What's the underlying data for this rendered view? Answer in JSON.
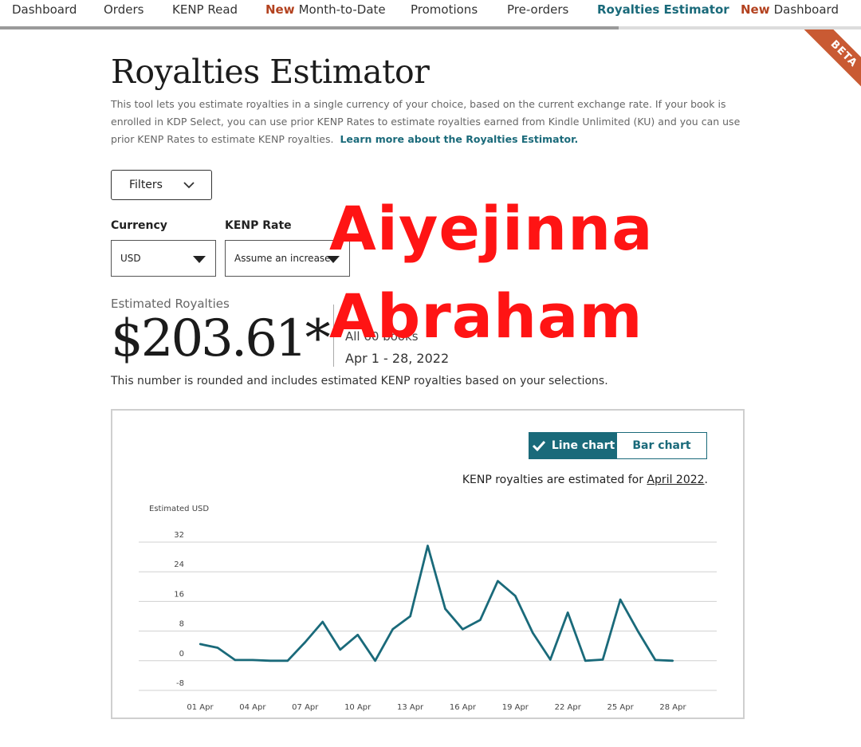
{
  "nav": {
    "items": [
      {
        "label": "Dashboard",
        "new": ""
      },
      {
        "label": "Orders",
        "new": ""
      },
      {
        "label": "KENP Read",
        "new": ""
      },
      {
        "label": "Month-to-Date",
        "new": "New"
      },
      {
        "label": "Promotions",
        "new": ""
      },
      {
        "label": "Pre-orders",
        "new": ""
      },
      {
        "label": "Royalties Estimator",
        "new": ""
      },
      {
        "label": "Dashboard",
        "new": "New"
      }
    ],
    "active_index": 6
  },
  "beta_badge": "BETA",
  "page": {
    "title": "Royalties Estimator",
    "intro": "This tool lets you estimate royalties in a single currency of your choice, based on the current exchange rate. If your book is enrolled in KDP Select, you can use prior KENP Rates to estimate royalties earned from Kindle Unlimited (KU) and you can use prior KENP Rates to estimate KENP royalties.",
    "learn_more": "Learn more about the Royalties Estimator."
  },
  "filters": {
    "label": "Filters"
  },
  "currency": {
    "label": "Currency",
    "value": "USD"
  },
  "kenp_rate": {
    "label": "KENP Rate",
    "value": "Assume an increase"
  },
  "estimate": {
    "label": "Estimated Royalties",
    "value": "$203.61*",
    "books": "All 60 books",
    "date_range": "Apr 1 - 28, 2022",
    "note": "This number is rounded and includes estimated KENP royalties based on your selections."
  },
  "watermark": {
    "line1": "Aiyejinna",
    "line2": "Abraham"
  },
  "chart_toggle": {
    "line_label": "Line chart",
    "bar_label": "Bar chart",
    "selected": "Line chart"
  },
  "kenp_note": {
    "prefix": "KENP royalties are estimated for ",
    "month": "April 2022",
    "suffix": "."
  },
  "colors": {
    "accent": "#1a6a7a",
    "new_badge": "#b3421f",
    "beta": "#c95a33",
    "watermark": "#ff1414"
  },
  "chart_data": {
    "type": "line",
    "ylabel": "Estimated USD",
    "ylim": [
      -8,
      32
    ],
    "yticks": [
      -8,
      0,
      8,
      16,
      24,
      32
    ],
    "grid": true,
    "x": [
      1,
      2,
      3,
      4,
      5,
      6,
      7,
      8,
      9,
      10,
      11,
      12,
      13,
      14,
      15,
      16,
      17,
      18,
      19,
      20,
      21,
      22,
      23,
      24,
      25,
      26,
      27,
      28
    ],
    "xticks": [
      1,
      4,
      7,
      10,
      13,
      16,
      19,
      22,
      25,
      28
    ],
    "xtick_labels": [
      "01 Apr",
      "04 Apr",
      "07 Apr",
      "10 Apr",
      "13 Apr",
      "16 Apr",
      "19 Apr",
      "22 Apr",
      "25 Apr",
      "28 Apr"
    ],
    "values": [
      4.5,
      3.5,
      0.2,
      0.2,
      0,
      0,
      5,
      10.5,
      3,
      7,
      0,
      8.5,
      12,
      31,
      14,
      8.5,
      11,
      21.5,
      17.5,
      7.5,
      0.3,
      13,
      0,
      0.3,
      16.5,
      8,
      0.2,
      0
    ]
  }
}
